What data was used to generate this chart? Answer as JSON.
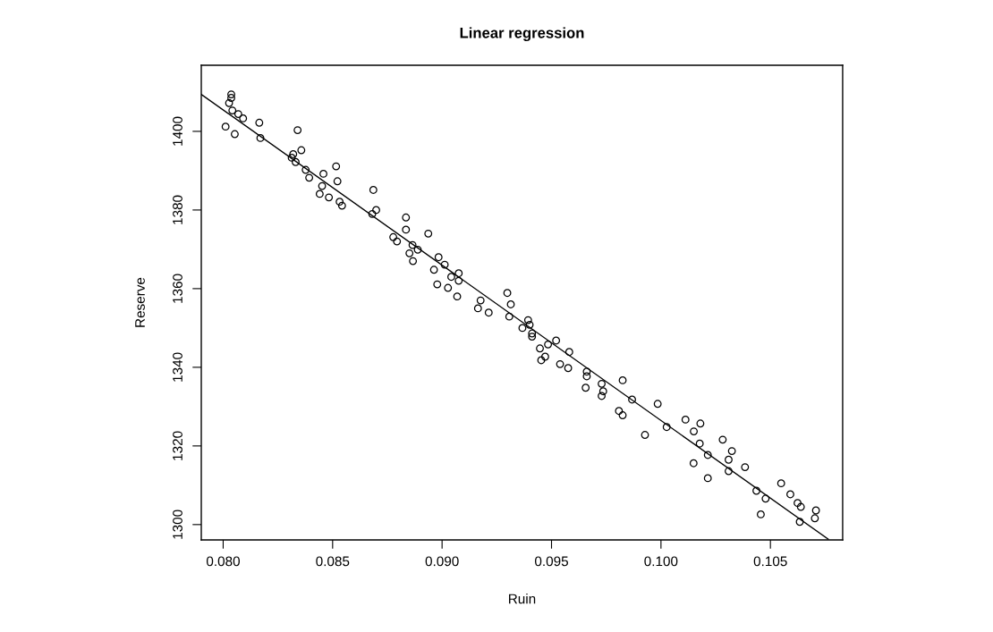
{
  "chart_data": {
    "type": "scatter",
    "title": "Linear regression",
    "xlabel": "Ruin",
    "ylabel": "Reserve",
    "xlim": [
      0.079,
      0.1083
    ],
    "ylim": [
      1296.1,
      1416.8
    ],
    "xticks": [
      {
        "value": 0.08,
        "label": "0.080"
      },
      {
        "value": 0.085,
        "label": "0.085"
      },
      {
        "value": 0.09,
        "label": "0.090"
      },
      {
        "value": 0.095,
        "label": "0.095"
      },
      {
        "value": 0.1,
        "label": "0.100"
      },
      {
        "value": 0.105,
        "label": "0.105"
      }
    ],
    "yticks": [
      1300,
      1320,
      1340,
      1360,
      1380,
      1400
    ],
    "grid": false,
    "marker": "circle",
    "series": [
      {
        "color": "#000000",
        "x": [
          0.08037,
          0.08037,
          0.08027,
          0.08042,
          0.08069,
          0.08091,
          0.08011,
          0.08053,
          0.08165,
          0.0817,
          0.0834,
          0.08357,
          0.0832,
          0.08313,
          0.08331,
          0.08377,
          0.08393,
          0.08458,
          0.08452,
          0.08441,
          0.08483,
          0.08516,
          0.08522,
          0.08532,
          0.08543,
          0.08686,
          0.08699,
          0.08681,
          0.08835,
          0.08835,
          0.08777,
          0.08794,
          0.08865,
          0.08851,
          0.08867,
          0.08937,
          0.08889,
          0.08984,
          0.09012,
          0.08963,
          0.09042,
          0.09076,
          0.09076,
          0.08978,
          0.09027,
          0.09069,
          0.09298,
          0.09314,
          0.09176,
          0.09164,
          0.09213,
          0.09307,
          0.09393,
          0.094,
          0.09367,
          0.09411,
          0.09411,
          0.09521,
          0.09484,
          0.09447,
          0.09581,
          0.09471,
          0.09453,
          0.09539,
          0.09576,
          0.09661,
          0.09661,
          0.09656,
          0.09729,
          0.09736,
          0.09729,
          0.09825,
          0.09868,
          0.09808,
          0.09825,
          0.09985,
          0.09927,
          0.10026,
          0.10112,
          0.1015,
          0.1018,
          0.10177,
          0.10214,
          0.10149,
          0.10214,
          0.10282,
          0.10324,
          0.10309,
          0.10309,
          0.10384,
          0.10436,
          0.10478,
          0.10456,
          0.10549,
          0.10591,
          0.10624,
          0.10639,
          0.10634,
          0.10708,
          0.10703
        ],
        "values": [
          1409.4,
          1408.5,
          1407.2,
          1405.3,
          1404.4,
          1403.3,
          1401.2,
          1399.3,
          1402.2,
          1398.3,
          1400.3,
          1395.2,
          1394.2,
          1393.3,
          1392.2,
          1390.2,
          1388.2,
          1389.2,
          1386.1,
          1384.1,
          1383.2,
          1391.1,
          1387.3,
          1382.1,
          1381.1,
          1385.1,
          1380.0,
          1379.0,
          1378.1,
          1375.0,
          1373.1,
          1372.0,
          1371.1,
          1369.0,
          1367.0,
          1374.0,
          1369.9,
          1368.0,
          1366.1,
          1364.8,
          1363.0,
          1363.9,
          1362.0,
          1361.1,
          1360.2,
          1358.0,
          1358.9,
          1356.0,
          1357.0,
          1355.0,
          1353.9,
          1352.9,
          1352.0,
          1350.8,
          1350.0,
          1348.6,
          1347.8,
          1346.8,
          1345.8,
          1344.8,
          1343.9,
          1342.7,
          1341.8,
          1340.8,
          1339.8,
          1338.9,
          1337.7,
          1334.8,
          1335.8,
          1333.9,
          1332.7,
          1336.7,
          1331.8,
          1328.9,
          1327.8,
          1330.7,
          1322.8,
          1324.8,
          1326.7,
          1323.7,
          1325.7,
          1320.6,
          1317.7,
          1315.6,
          1311.8,
          1321.6,
          1318.7,
          1316.5,
          1313.6,
          1314.6,
          1308.6,
          1306.6,
          1302.6,
          1310.5,
          1307.7,
          1305.5,
          1304.5,
          1300.7,
          1303.6,
          1301.6
        ]
      },
      {
        "type": "line",
        "color": "#000000",
        "marker": "none",
        "line_style": "solid",
        "x": [
          0.079,
          0.10764
        ],
        "values": [
          1409.4,
          1296.3
        ]
      }
    ]
  }
}
